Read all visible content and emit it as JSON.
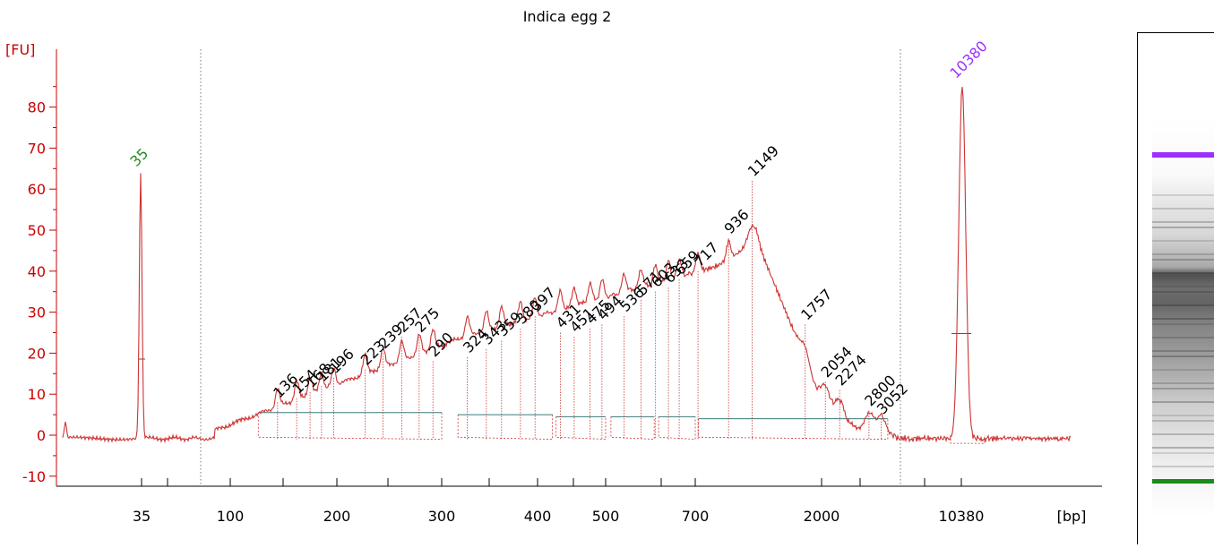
{
  "chart_data": {
    "type": "line",
    "title": "Indica egg 2",
    "ylabel": "[FU]",
    "xlabel": "[bp]",
    "ylim": [
      -12,
      95
    ],
    "y_ticks": [
      -10,
      0,
      10,
      20,
      30,
      40,
      50,
      60,
      70,
      80
    ],
    "x_ticks": [
      "35",
      "100",
      "200",
      "300",
      "400",
      "500",
      "700",
      "2000",
      "10380"
    ],
    "colors": {
      "trace": "#cc3333",
      "axis": "#cc0000",
      "lower_marker": "#228b22",
      "upper_marker": "#9b30ff",
      "baseline": "#3a7a7a"
    },
    "markers": [
      {
        "label": "35",
        "size_bp": 35,
        "height": 64,
        "role": "lower"
      },
      {
        "label": "10380",
        "size_bp": 10380,
        "height": 85.5,
        "role": "upper"
      }
    ],
    "peaks": [
      {
        "label": "136",
        "size_bp": 136,
        "height": 8
      },
      {
        "label": "154",
        "size_bp": 154,
        "height": 9
      },
      {
        "label": "168",
        "size_bp": 168,
        "height": 10.5
      },
      {
        "label": "181",
        "size_bp": 181,
        "height": 12
      },
      {
        "label": "196",
        "size_bp": 196,
        "height": 14
      },
      {
        "label": "223",
        "size_bp": 223,
        "height": 16
      },
      {
        "label": "239",
        "size_bp": 239,
        "height": 20
      },
      {
        "label": "257",
        "size_bp": 257,
        "height": 24
      },
      {
        "label": "275",
        "size_bp": 275,
        "height": 24
      },
      {
        "label": "290",
        "size_bp": 290,
        "height": 18
      },
      {
        "label": "324",
        "size_bp": 324,
        "height": 19
      },
      {
        "label": "343",
        "size_bp": 343,
        "height": 21
      },
      {
        "label": "359",
        "size_bp": 359,
        "height": 23
      },
      {
        "label": "380",
        "size_bp": 380,
        "height": 26
      },
      {
        "label": "397",
        "size_bp": 397,
        "height": 29
      },
      {
        "label": "431",
        "size_bp": 431,
        "height": 25
      },
      {
        "label": "451",
        "size_bp": 451,
        "height": 24
      },
      {
        "label": "475",
        "size_bp": 475,
        "height": 26
      },
      {
        "label": "494",
        "size_bp": 494,
        "height": 27
      },
      {
        "label": "536",
        "size_bp": 536,
        "height": 29
      },
      {
        "label": "571",
        "size_bp": 571,
        "height": 33
      },
      {
        "label": "603",
        "size_bp": 603,
        "height": 35
      },
      {
        "label": "633",
        "size_bp": 633,
        "height": 36
      },
      {
        "label": "659",
        "size_bp": 659,
        "height": 38
      },
      {
        "label": "717",
        "size_bp": 717,
        "height": 40
      },
      {
        "label": "936",
        "size_bp": 936,
        "height": 48
      },
      {
        "label": "1149",
        "size_bp": 1149,
        "height": 62
      },
      {
        "label": "1757",
        "size_bp": 1757,
        "height": 27
      },
      {
        "label": "2054",
        "size_bp": 2054,
        "height": 13
      },
      {
        "label": "2274",
        "size_bp": 2274,
        "height": 11
      },
      {
        "label": "2800",
        "size_bp": 2800,
        "height": 6
      },
      {
        "label": "3052",
        "size_bp": 3052,
        "height": 4
      }
    ],
    "smears": [
      {
        "from_bp": 120,
        "to_bp": 300,
        "level": 5.5
      },
      {
        "from_bp": 315,
        "to_bp": 420,
        "level": 5
      },
      {
        "from_bp": 425,
        "to_bp": 500,
        "level": 4.5
      },
      {
        "from_bp": 510,
        "to_bp": 600,
        "level": 4.5
      },
      {
        "from_bp": 610,
        "to_bp": 700,
        "level": 4.5
      },
      {
        "from_bp": 720,
        "to_bp": 3200,
        "level": 4
      }
    ],
    "grid": false,
    "legend": "none"
  },
  "gel": {
    "bands": [
      {
        "role": "upper",
        "color": "#9b30ff"
      },
      {
        "role": "lower",
        "color": "#1a8a1a"
      }
    ]
  }
}
